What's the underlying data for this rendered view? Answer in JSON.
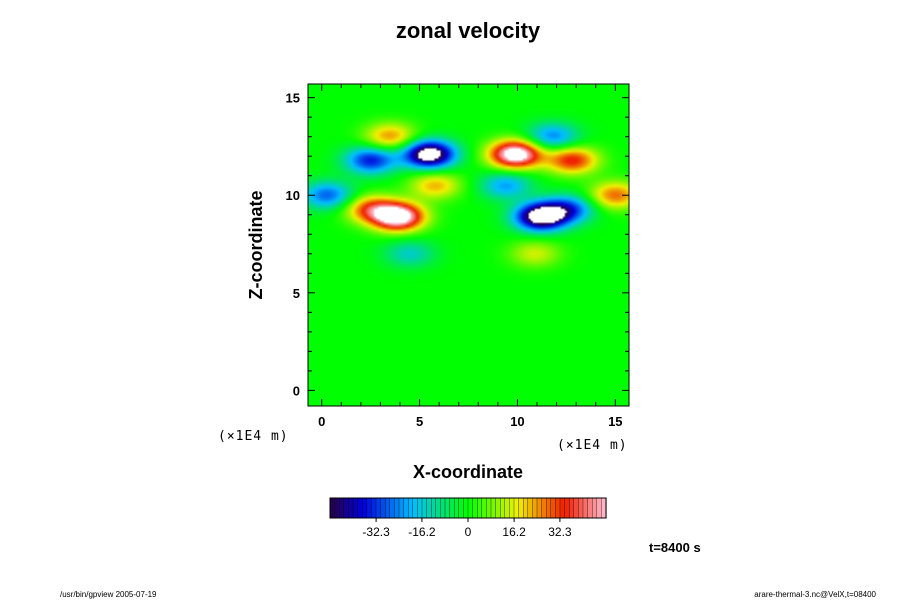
{
  "chart_data": {
    "type": "heatmap",
    "title": "zonal velocity",
    "xlabel": "X-coordinate",
    "ylabel": "Z-coordinate",
    "x_unit": "(×1E4 m)",
    "y_unit": "(×1E4 m)",
    "xlim": [
      -0.7,
      15.7
    ],
    "ylim": [
      -0.8,
      15.7
    ],
    "x_ticks": [
      0,
      5,
      10,
      15
    ],
    "y_ticks": [
      0,
      5,
      10,
      15
    ],
    "colorbar": {
      "min": -48.5,
      "max": 48.5,
      "ticks": [
        -32.3,
        -16.2,
        0,
        16.2,
        32.3
      ],
      "tick_labels": [
        "-32.3",
        "-16.2",
        "0",
        "16.2",
        "32.3"
      ]
    },
    "features": [
      {
        "x": 3.9,
        "z": 8.9,
        "value": 60
      },
      {
        "x": 2.5,
        "z": 9.3,
        "value": 30
      },
      {
        "x": 11.2,
        "z": 8.9,
        "value": -60
      },
      {
        "x": 12.6,
        "z": 9.3,
        "value": -30
      },
      {
        "x": 5.5,
        "z": 12.1,
        "value": -60
      },
      {
        "x": 2.5,
        "z": 11.8,
        "value": -35
      },
      {
        "x": 9.9,
        "z": 12.1,
        "value": 60
      },
      {
        "x": 12.8,
        "z": 11.8,
        "value": 35
      },
      {
        "x": 0.3,
        "z": 10.0,
        "value": -28
      },
      {
        "x": 15.0,
        "z": 10.0,
        "value": 28
      },
      {
        "x": 5.8,
        "z": 10.5,
        "value": 22
      },
      {
        "x": 9.4,
        "z": 10.5,
        "value": -22
      },
      {
        "x": 3.5,
        "z": 13.0,
        "value": 25
      },
      {
        "x": 11.8,
        "z": 13.0,
        "value": -25
      },
      {
        "x": 4.5,
        "z": 7.0,
        "value": -15
      },
      {
        "x": 10.9,
        "z": 7.0,
        "value": 15
      }
    ],
    "time_label": "t=8400 s"
  },
  "footer": {
    "left": "/usr/bin/gpview 2005-07-19",
    "right": "arare-thermal-3.nc@VelX,t=08400"
  },
  "colors": {
    "background_field": "#00ff00",
    "saturated": "#ffffff"
  }
}
